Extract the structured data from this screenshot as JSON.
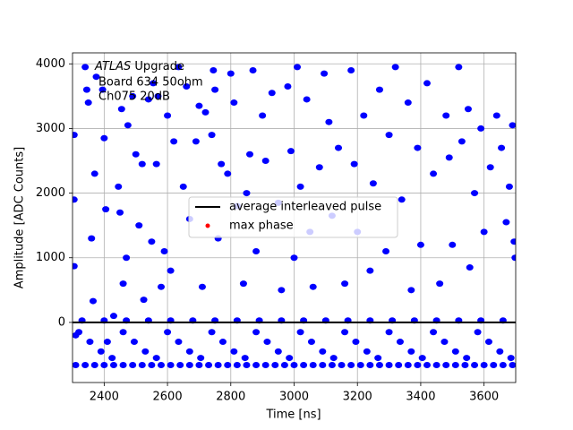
{
  "chart_data": {
    "type": "scatter",
    "xlabel": "Time [ns]",
    "ylabel": "Amplitude [ADC Counts]",
    "annotation": {
      "italic": "ATLAS",
      "text": "Upgrade",
      "lines": [
        "Board 634 50ohm",
        "Ch075 20dB"
      ]
    },
    "xlim": [
      2300,
      3700
    ],
    "ylim": [
      -930,
      4170
    ],
    "xticks": [
      2400,
      2600,
      2800,
      3000,
      3200,
      3400,
      3600
    ],
    "yticks": [
      0,
      1000,
      2000,
      3000,
      4000
    ],
    "grid": true,
    "legend": "center",
    "series": [
      {
        "name": "average interleaved pulse",
        "color": "#000000",
        "x": [
          2300,
          3700
        ],
        "values": [
          0,
          0
        ]
      },
      {
        "name": "max phase",
        "color": "#ff0000",
        "x": [],
        "values": []
      }
    ],
    "scatter": {
      "color": "#0000ff",
      "x": [
        2305,
        2305,
        2305,
        2310,
        2340,
        2345,
        2350,
        2360,
        2365,
        2370,
        2375,
        2395,
        2400,
        2405,
        2410,
        2430,
        2445,
        2450,
        2455,
        2460,
        2470,
        2475,
        2490,
        2500,
        2510,
        2520,
        2525,
        2540,
        2550,
        2555,
        2565,
        2570,
        2580,
        2590,
        2600,
        2610,
        2620,
        2635,
        2650,
        2660,
        2670,
        2690,
        2700,
        2710,
        2720,
        2740,
        2745,
        2750,
        2760,
        2770,
        2790,
        2800,
        2810,
        2820,
        2840,
        2850,
        2860,
        2870,
        2880,
        2900,
        2910,
        2930,
        2950,
        2960,
        2980,
        2990,
        3000,
        3010,
        3020,
        3040,
        3050,
        3060,
        3080,
        3095,
        3110,
        3120,
        3140,
        3160,
        3180,
        3190,
        3200,
        3220,
        3240,
        3250,
        3270,
        3290,
        3300,
        3320,
        3340,
        3360,
        3370,
        3390,
        3400,
        3420,
        3440,
        3460,
        3480,
        3490,
        3500,
        3520,
        3530,
        3550,
        3555,
        3570,
        3590,
        3600,
        3620,
        3640,
        3655,
        3670,
        3680,
        3690,
        3695,
        3698,
        2310,
        2340,
        2370,
        2400,
        2430,
        2460,
        2490,
        2520,
        2550,
        2580,
        2610,
        2640,
        2670,
        2700,
        2730,
        2760,
        2790,
        2820,
        2850,
        2880,
        2910,
        2940,
        2970,
        3000,
        3030,
        3060,
        3090,
        3120,
        3150,
        3180,
        3210,
        3240,
        3270,
        3300,
        3330,
        3360,
        3390,
        3420,
        3450,
        3480,
        3510,
        3540,
        3570,
        3600,
        3630,
        3660,
        3690,
        2320,
        2355,
        2390,
        2425,
        2460,
        2495,
        2530,
        2565,
        2600,
        2635,
        2670,
        2705,
        2740,
        2775,
        2810,
        2845,
        2880,
        2915,
        2950,
        2985,
        3020,
        3055,
        3090,
        3125,
        3160,
        3195,
        3230,
        3265,
        3300,
        3335,
        3370,
        3405,
        3440,
        3475,
        3510,
        3545,
        3580,
        3615,
        3650,
        3685,
        2330,
        2400,
        2470,
        2540,
        2610,
        2680,
        2750,
        2820,
        2890,
        2960,
        3030,
        3100,
        3170,
        3240,
        3310,
        3380,
        3450,
        3520,
        3590,
        3660
      ],
      "values": [
        2900,
        1900,
        870,
        -200,
        3950,
        3600,
        3400,
        1300,
        330,
        2300,
        3800,
        3600,
        2850,
        1750,
        -300,
        100,
        2100,
        1700,
        3300,
        600,
        1000,
        3050,
        3500,
        2600,
        1500,
        2450,
        350,
        3450,
        1250,
        3700,
        2450,
        3500,
        550,
        1100,
        3200,
        800,
        2800,
        3950,
        2100,
        3650,
        1600,
        2800,
        3350,
        550,
        3250,
        2900,
        3900,
        3600,
        1300,
        2450,
        2300,
        3850,
        3400,
        1800,
        600,
        2000,
        2600,
        3900,
        1100,
        3200,
        2500,
        3550,
        1850,
        500,
        3650,
        2650,
        1000,
        3950,
        2100,
        3450,
        1400,
        550,
        2400,
        3850,
        3100,
        1650,
        2700,
        600,
        3900,
        2450,
        1400,
        3200,
        800,
        2150,
        3600,
        1100,
        2900,
        3950,
        1900,
        3400,
        500,
        2700,
        1200,
        3700,
        2300,
        600,
        3200,
        2550,
        1200,
        3950,
        2800,
        3300,
        850,
        2000,
        3000,
        1400,
        2400,
        3200,
        2700,
        1550,
        2100,
        3050,
        1250,
        1000,
        -660,
        -660,
        -660,
        -660,
        -660,
        -660,
        -660,
        -660,
        -660,
        -660,
        -660,
        -660,
        -660,
        -660,
        -660,
        -660,
        -660,
        -660,
        -660,
        -660,
        -660,
        -660,
        -660,
        -660,
        -660,
        -660,
        -660,
        -660,
        -660,
        -660,
        -660,
        -660,
        -660,
        -660,
        -660,
        -660,
        -660,
        -660,
        -660,
        -660,
        -660,
        -660,
        -660,
        -660,
        -660,
        -660,
        -660,
        -150,
        -300,
        -450,
        -550,
        -150,
        -300,
        -450,
        -550,
        -150,
        -300,
        -450,
        -550,
        -150,
        -300,
        -450,
        -550,
        -150,
        -300,
        -450,
        -550,
        -150,
        -300,
        -450,
        -550,
        -150,
        -300,
        -450,
        -550,
        -150,
        -300,
        -450,
        -550,
        -150,
        -300,
        -450,
        -550,
        -150,
        -300,
        -450,
        -550,
        30,
        30,
        30,
        30,
        30,
        30,
        30,
        30,
        30,
        30,
        30,
        30,
        30,
        30,
        30,
        30,
        30,
        30,
        30,
        30
      ]
    }
  }
}
